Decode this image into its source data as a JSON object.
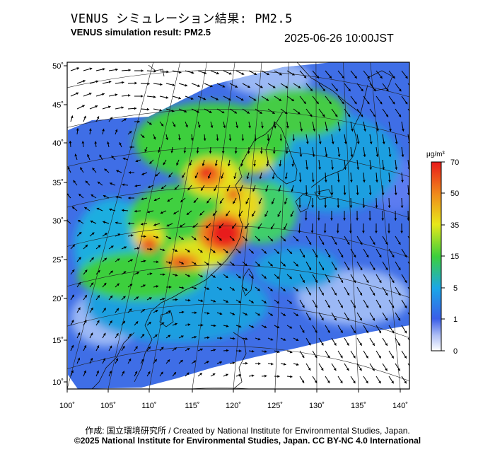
{
  "title_ja": "VENUS シミュレーション結果: PM2.5",
  "title_en": "VENUS simulation result: PM2.5",
  "timestamp": "2025-06-26 10:00JST",
  "map": {
    "lat_ticks": [
      "10˚",
      "15˚",
      "20˚",
      "25˚",
      "30˚",
      "35˚",
      "40˚",
      "45˚",
      "50˚"
    ],
    "lon_ticks": [
      "100˚",
      "105˚",
      "110˚",
      "115˚",
      "120˚",
      "125˚",
      "130˚",
      "135˚",
      "140˚"
    ],
    "lat_values": [
      10,
      15,
      20,
      25,
      30,
      35,
      40,
      45,
      50
    ],
    "lon_values": [
      100,
      105,
      110,
      115,
      120,
      125,
      130,
      135,
      140
    ],
    "variable": "PM2.5",
    "layers": [
      "concentration field",
      "wind vectors",
      "coastlines",
      "lat/lon graticule"
    ]
  },
  "colorbar": {
    "unit": "μg/m³",
    "tick_labels": [
      "0",
      "1",
      "5",
      "15",
      "35",
      "50",
      "70"
    ],
    "colors": [
      "#ffffff",
      "#3a5ee8",
      "#1aa6e8",
      "#3ccf3c",
      "#e8e81a",
      "#f08a1a",
      "#e81a1a"
    ]
  },
  "credit_ja": "作成: 国立環境研究所 / Created by National Institute for Environmental Studies, Japan.",
  "credit_copyright": "©2025 National Institute for Environmental Studies, Japan. CC BY-NC 4.0 International"
}
